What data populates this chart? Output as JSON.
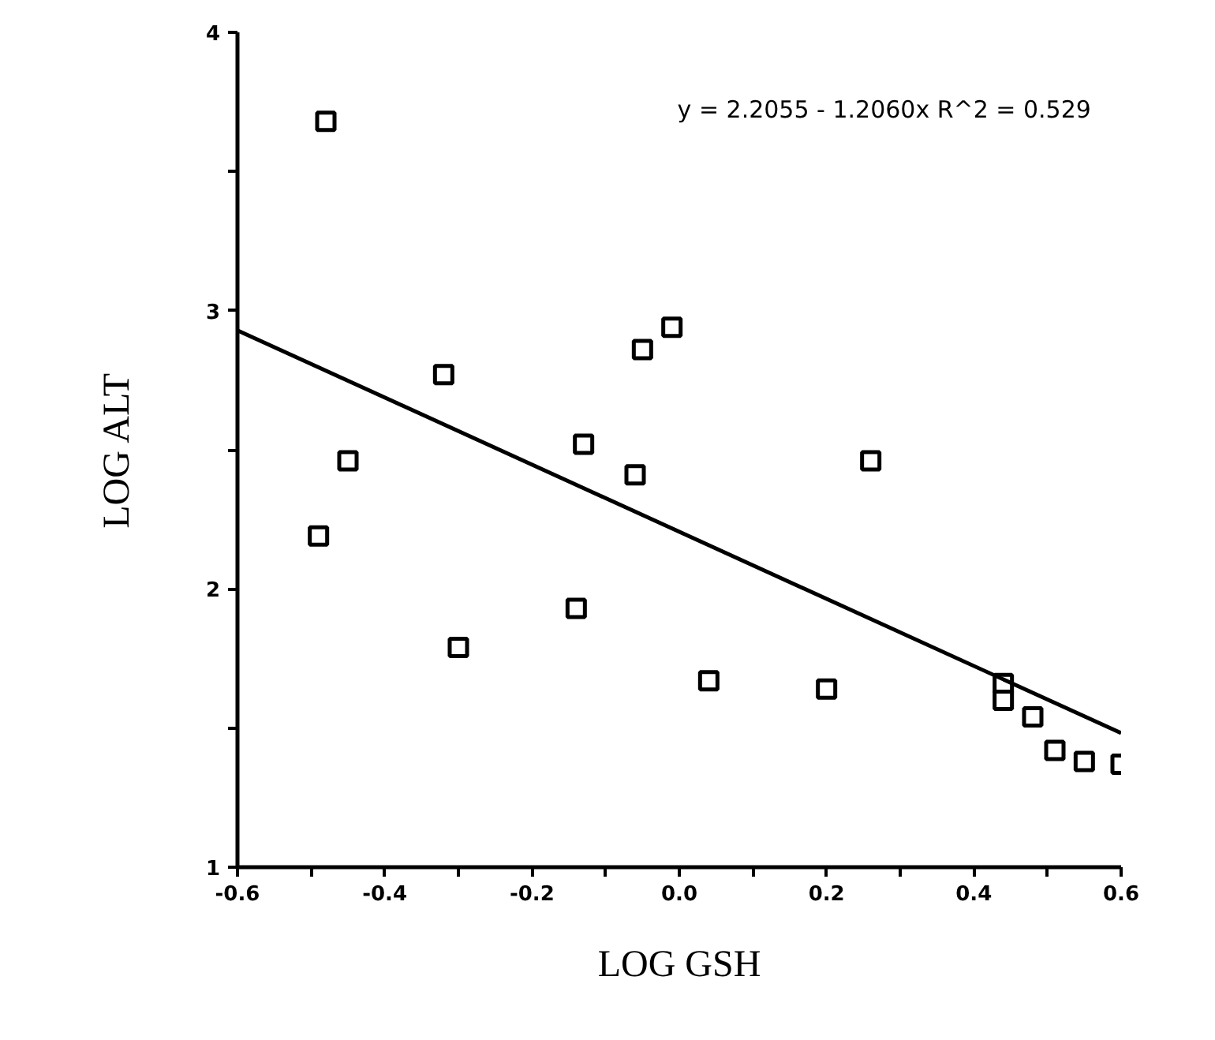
{
  "chart_data": {
    "type": "scatter",
    "xlabel": "LOG GSH",
    "ylabel": "LOG ALT",
    "annotations": [
      "y = 2.2055 - 1.2060x     R^2 = 0.529"
    ],
    "xlim": [
      -0.6,
      0.6
    ],
    "ylim": [
      1,
      4
    ],
    "xticks": [
      -0.6,
      {
        "value": -0.5,
        "label": null
      },
      -0.4,
      {
        "value": -0.3,
        "label": null
      },
      -0.2,
      {
        "value": -0.1,
        "label": null
      },
      {
        "value": 0,
        "label": "0.0"
      },
      {
        "value": 0.1,
        "label": null
      },
      0.2,
      {
        "value": 0.3,
        "label": null
      },
      0.4,
      {
        "value": 0.5,
        "label": null
      },
      0.6
    ],
    "yticks": [
      1,
      {
        "value": 1.5,
        "label": null
      },
      2,
      {
        "value": 2.5,
        "label": null
      },
      3,
      {
        "value": 3.5,
        "label": null
      },
      4
    ],
    "grid": false,
    "marker": "square",
    "series": [
      {
        "color": "#000000",
        "x": [
          -0.48,
          -0.49,
          -0.45,
          -0.32,
          -0.3,
          -0.14,
          -0.13,
          -0.06,
          -0.05,
          -0.01,
          0.04,
          0.2,
          0.26,
          0.44,
          0.44,
          0.48,
          0.51,
          0.55,
          0.6
        ],
        "values": [
          3.68,
          2.19,
          2.46,
          2.77,
          1.79,
          1.93,
          2.52,
          2.41,
          2.86,
          2.94,
          1.67,
          1.64,
          2.46,
          1.66,
          1.6,
          1.54,
          1.42,
          1.38,
          1.37
        ]
      },
      {
        "type": "line",
        "color": "#000000",
        "marker": "none",
        "line_style": "solid",
        "x": [
          -0.6,
          0.6
        ],
        "values": [
          2.929,
          1.482
        ]
      }
    ]
  }
}
